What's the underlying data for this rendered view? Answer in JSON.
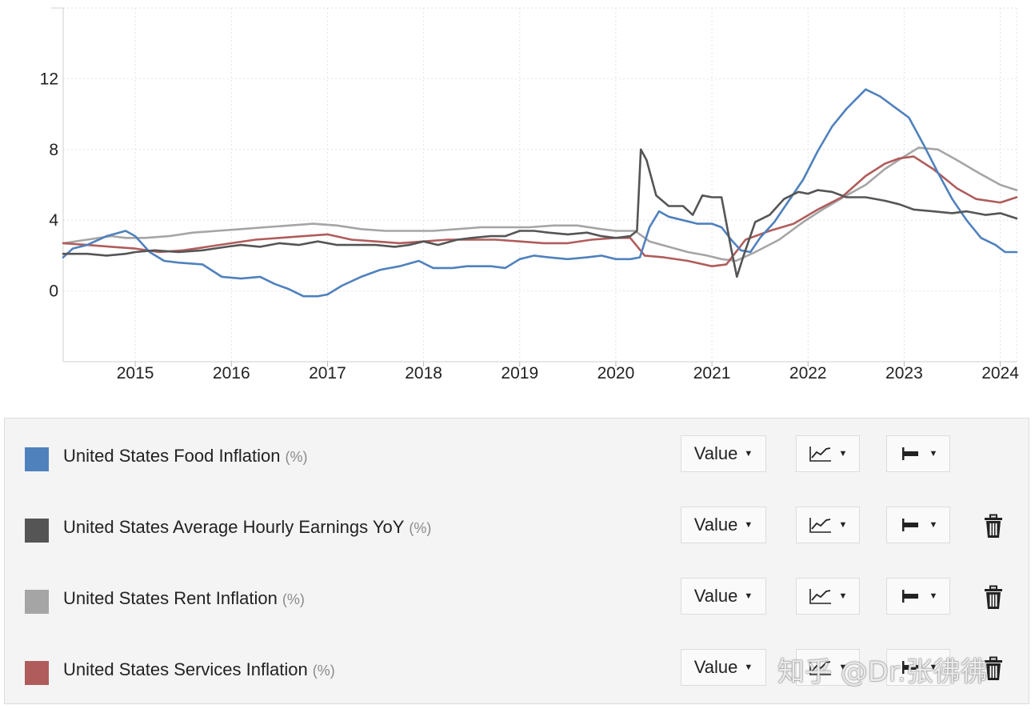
{
  "chart_data": {
    "type": "line",
    "ylim": [
      -4,
      16
    ],
    "y_ticks": [
      "0",
      "4",
      "8",
      "12"
    ],
    "x_ticks": [
      "2015",
      "2016",
      "2017",
      "2018",
      "2019",
      "2020",
      "2021",
      "2022",
      "2023",
      "2024"
    ],
    "x_range": [
      2014.25,
      2024.17
    ],
    "grid": true,
    "series": [
      {
        "name": "United States Food Inflation",
        "color": "#4f81bd",
        "points": [
          [
            2014.25,
            1.9
          ],
          [
            2014.35,
            2.4
          ],
          [
            2014.5,
            2.6
          ],
          [
            2014.7,
            3.1
          ],
          [
            2014.9,
            3.4
          ],
          [
            2015.0,
            3.1
          ],
          [
            2015.15,
            2.2
          ],
          [
            2015.3,
            1.7
          ],
          [
            2015.45,
            1.6
          ],
          [
            2015.7,
            1.5
          ],
          [
            2015.9,
            0.8
          ],
          [
            2016.1,
            0.7
          ],
          [
            2016.3,
            0.8
          ],
          [
            2016.45,
            0.4
          ],
          [
            2016.6,
            0.1
          ],
          [
            2016.75,
            -0.3
          ],
          [
            2016.9,
            -0.3
          ],
          [
            2017.0,
            -0.2
          ],
          [
            2017.15,
            0.3
          ],
          [
            2017.35,
            0.8
          ],
          [
            2017.55,
            1.2
          ],
          [
            2017.75,
            1.4
          ],
          [
            2017.95,
            1.7
          ],
          [
            2018.1,
            1.3
          ],
          [
            2018.3,
            1.3
          ],
          [
            2018.45,
            1.4
          ],
          [
            2018.7,
            1.4
          ],
          [
            2018.85,
            1.3
          ],
          [
            2019.0,
            1.8
          ],
          [
            2019.15,
            2.0
          ],
          [
            2019.3,
            1.9
          ],
          [
            2019.5,
            1.8
          ],
          [
            2019.7,
            1.9
          ],
          [
            2019.85,
            2.0
          ],
          [
            2020.0,
            1.8
          ],
          [
            2020.15,
            1.8
          ],
          [
            2020.25,
            1.9
          ],
          [
            2020.35,
            3.6
          ],
          [
            2020.45,
            4.5
          ],
          [
            2020.55,
            4.2
          ],
          [
            2020.7,
            4.0
          ],
          [
            2020.85,
            3.8
          ],
          [
            2021.0,
            3.8
          ],
          [
            2021.1,
            3.6
          ],
          [
            2021.2,
            2.9
          ],
          [
            2021.3,
            2.3
          ],
          [
            2021.4,
            2.2
          ],
          [
            2021.5,
            3.0
          ],
          [
            2021.65,
            3.9
          ],
          [
            2021.8,
            5.1
          ],
          [
            2021.95,
            6.3
          ],
          [
            2022.1,
            7.9
          ],
          [
            2022.25,
            9.3
          ],
          [
            2022.4,
            10.3
          ],
          [
            2022.6,
            11.4
          ],
          [
            2022.75,
            11.0
          ],
          [
            2022.9,
            10.4
          ],
          [
            2023.05,
            9.8
          ],
          [
            2023.2,
            8.3
          ],
          [
            2023.35,
            6.7
          ],
          [
            2023.5,
            5.2
          ],
          [
            2023.65,
            4.0
          ],
          [
            2023.8,
            3.0
          ],
          [
            2023.95,
            2.6
          ],
          [
            2024.05,
            2.2
          ],
          [
            2024.17,
            2.2
          ]
        ]
      },
      {
        "name": "United States Average Hourly Earnings YoY",
        "color": "#555555",
        "points": [
          [
            2014.25,
            2.1
          ],
          [
            2014.5,
            2.1
          ],
          [
            2014.7,
            2.0
          ],
          [
            2014.9,
            2.1
          ],
          [
            2015.0,
            2.2
          ],
          [
            2015.2,
            2.3
          ],
          [
            2015.45,
            2.2
          ],
          [
            2015.7,
            2.3
          ],
          [
            2015.95,
            2.5
          ],
          [
            2016.1,
            2.6
          ],
          [
            2016.3,
            2.5
          ],
          [
            2016.5,
            2.7
          ],
          [
            2016.7,
            2.6
          ],
          [
            2016.9,
            2.8
          ],
          [
            2017.1,
            2.6
          ],
          [
            2017.3,
            2.6
          ],
          [
            2017.5,
            2.6
          ],
          [
            2017.7,
            2.5
          ],
          [
            2017.85,
            2.6
          ],
          [
            2018.0,
            2.8
          ],
          [
            2018.15,
            2.6
          ],
          [
            2018.35,
            2.9
          ],
          [
            2018.5,
            3.0
          ],
          [
            2018.7,
            3.1
          ],
          [
            2018.85,
            3.1
          ],
          [
            2019.0,
            3.4
          ],
          [
            2019.15,
            3.4
          ],
          [
            2019.3,
            3.3
          ],
          [
            2019.5,
            3.2
          ],
          [
            2019.7,
            3.3
          ],
          [
            2019.85,
            3.1
          ],
          [
            2020.0,
            3.0
          ],
          [
            2020.15,
            3.1
          ],
          [
            2020.22,
            3.4
          ],
          [
            2020.26,
            8.0
          ],
          [
            2020.32,
            7.4
          ],
          [
            2020.42,
            5.4
          ],
          [
            2020.55,
            4.8
          ],
          [
            2020.7,
            4.8
          ],
          [
            2020.8,
            4.3
          ],
          [
            2020.9,
            5.4
          ],
          [
            2021.0,
            5.3
          ],
          [
            2021.1,
            5.3
          ],
          [
            2021.2,
            2.4
          ],
          [
            2021.26,
            0.8
          ],
          [
            2021.33,
            2.0
          ],
          [
            2021.45,
            3.9
          ],
          [
            2021.6,
            4.3
          ],
          [
            2021.75,
            5.2
          ],
          [
            2021.9,
            5.6
          ],
          [
            2022.0,
            5.5
          ],
          [
            2022.1,
            5.7
          ],
          [
            2022.25,
            5.6
          ],
          [
            2022.4,
            5.3
          ],
          [
            2022.6,
            5.3
          ],
          [
            2022.8,
            5.1
          ],
          [
            2022.95,
            4.9
          ],
          [
            2023.1,
            4.6
          ],
          [
            2023.3,
            4.5
          ],
          [
            2023.5,
            4.4
          ],
          [
            2023.65,
            4.5
          ],
          [
            2023.85,
            4.3
          ],
          [
            2024.0,
            4.4
          ],
          [
            2024.17,
            4.1
          ]
        ]
      },
      {
        "name": "United States Rent Inflation",
        "color": "#a5a5a5",
        "points": [
          [
            2014.25,
            2.7
          ],
          [
            2014.5,
            2.9
          ],
          [
            2014.75,
            3.1
          ],
          [
            2014.9,
            3.0
          ],
          [
            2015.1,
            3.0
          ],
          [
            2015.35,
            3.1
          ],
          [
            2015.6,
            3.3
          ],
          [
            2015.85,
            3.4
          ],
          [
            2016.1,
            3.5
          ],
          [
            2016.35,
            3.6
          ],
          [
            2016.6,
            3.7
          ],
          [
            2016.85,
            3.8
          ],
          [
            2017.1,
            3.7
          ],
          [
            2017.35,
            3.5
          ],
          [
            2017.6,
            3.4
          ],
          [
            2017.85,
            3.4
          ],
          [
            2018.1,
            3.4
          ],
          [
            2018.35,
            3.5
          ],
          [
            2018.6,
            3.6
          ],
          [
            2018.85,
            3.6
          ],
          [
            2019.1,
            3.6
          ],
          [
            2019.35,
            3.7
          ],
          [
            2019.6,
            3.7
          ],
          [
            2019.85,
            3.5
          ],
          [
            2020.0,
            3.4
          ],
          [
            2020.2,
            3.4
          ],
          [
            2020.35,
            2.8
          ],
          [
            2020.55,
            2.5
          ],
          [
            2020.75,
            2.2
          ],
          [
            2020.95,
            2.0
          ],
          [
            2021.1,
            1.8
          ],
          [
            2021.25,
            1.7
          ],
          [
            2021.45,
            2.2
          ],
          [
            2021.7,
            2.9
          ],
          [
            2021.95,
            3.9
          ],
          [
            2022.15,
            4.6
          ],
          [
            2022.4,
            5.4
          ],
          [
            2022.6,
            6.0
          ],
          [
            2022.8,
            6.9
          ],
          [
            2023.0,
            7.6
          ],
          [
            2023.15,
            8.1
          ],
          [
            2023.35,
            8.0
          ],
          [
            2023.55,
            7.4
          ],
          [
            2023.8,
            6.6
          ],
          [
            2024.0,
            6.0
          ],
          [
            2024.17,
            5.7
          ]
        ]
      },
      {
        "name": "United States Services Inflation",
        "color": "#b05c5c",
        "points": [
          [
            2014.25,
            2.7
          ],
          [
            2014.5,
            2.6
          ],
          [
            2014.75,
            2.5
          ],
          [
            2015.0,
            2.4
          ],
          [
            2015.25,
            2.2
          ],
          [
            2015.5,
            2.3
          ],
          [
            2015.75,
            2.5
          ],
          [
            2016.0,
            2.7
          ],
          [
            2016.25,
            2.9
          ],
          [
            2016.5,
            3.0
          ],
          [
            2016.75,
            3.1
          ],
          [
            2017.0,
            3.2
          ],
          [
            2017.25,
            2.9
          ],
          [
            2017.5,
            2.8
          ],
          [
            2017.75,
            2.7
          ],
          [
            2018.0,
            2.8
          ],
          [
            2018.25,
            2.9
          ],
          [
            2018.5,
            2.9
          ],
          [
            2018.75,
            2.9
          ],
          [
            2019.0,
            2.8
          ],
          [
            2019.25,
            2.7
          ],
          [
            2019.5,
            2.7
          ],
          [
            2019.75,
            2.9
          ],
          [
            2020.0,
            3.0
          ],
          [
            2020.15,
            3.0
          ],
          [
            2020.3,
            2.0
          ],
          [
            2020.5,
            1.9
          ],
          [
            2020.75,
            1.7
          ],
          [
            2021.0,
            1.4
          ],
          [
            2021.15,
            1.5
          ],
          [
            2021.35,
            2.9
          ],
          [
            2021.6,
            3.4
          ],
          [
            2021.85,
            3.8
          ],
          [
            2022.1,
            4.6
          ],
          [
            2022.35,
            5.3
          ],
          [
            2022.6,
            6.5
          ],
          [
            2022.8,
            7.2
          ],
          [
            2022.95,
            7.5
          ],
          [
            2023.1,
            7.6
          ],
          [
            2023.3,
            6.9
          ],
          [
            2023.55,
            5.8
          ],
          [
            2023.75,
            5.2
          ],
          [
            2024.0,
            5.0
          ],
          [
            2024.17,
            5.3
          ]
        ]
      }
    ]
  },
  "legend": {
    "items": [
      {
        "label": "United States Food Inflation",
        "unit": "(%)",
        "color": "#4f81bd",
        "value_label": "Value",
        "deletable": false
      },
      {
        "label": "United States Average Hourly Earnings YoY",
        "unit": "(%)",
        "color": "#555555",
        "value_label": "Value",
        "deletable": true
      },
      {
        "label": "United States Rent Inflation",
        "unit": "(%)",
        "color": "#a5a5a5",
        "value_label": "Value",
        "deletable": true
      },
      {
        "label": "United States Services Inflation",
        "unit": "(%)",
        "color": "#b05c5c",
        "value_label": "Value",
        "deletable": true
      }
    ],
    "icons": {
      "type_dropdown": "line-chart-icon",
      "axis_dropdown": "axis-align-icon",
      "delete": "trash-icon",
      "caret": "caret-down-icon"
    }
  },
  "watermark": "知乎 @Dr.张彿彿"
}
